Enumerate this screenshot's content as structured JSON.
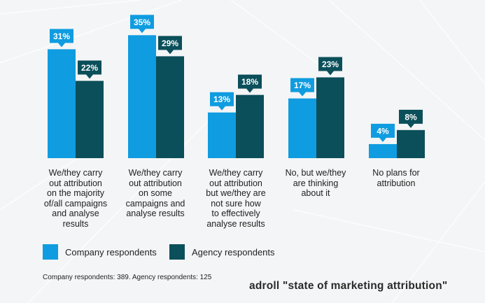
{
  "chart_data": {
    "type": "bar",
    "categories": [
      "We/they carry\nout attribution\non the majority\nof/all campaigns\nand analyse\nresults",
      "We/they carry\nout attribution\non some\ncampaigns and\nanalyse results",
      "We/they carry\nout attribution\nbut we/they are\nnot sure how\nto effectively\nanalyse results",
      "No, but we/they\nare thinking\nabout it",
      "No plans for\nattribution"
    ],
    "series": [
      {
        "name": "Company respondents",
        "values": [
          31,
          35,
          13,
          17,
          4
        ],
        "color": "#0f9ce0"
      },
      {
        "name": "Agency respondents",
        "values": [
          22,
          29,
          18,
          23,
          8
        ],
        "color": "#0a4f5a"
      }
    ],
    "value_suffix": "%",
    "legend_position": "bottom-left",
    "grid": false
  },
  "footnote": "Company respondents: 389. Agency respondents: 125",
  "source": "adroll \"state of marketing attribution\""
}
